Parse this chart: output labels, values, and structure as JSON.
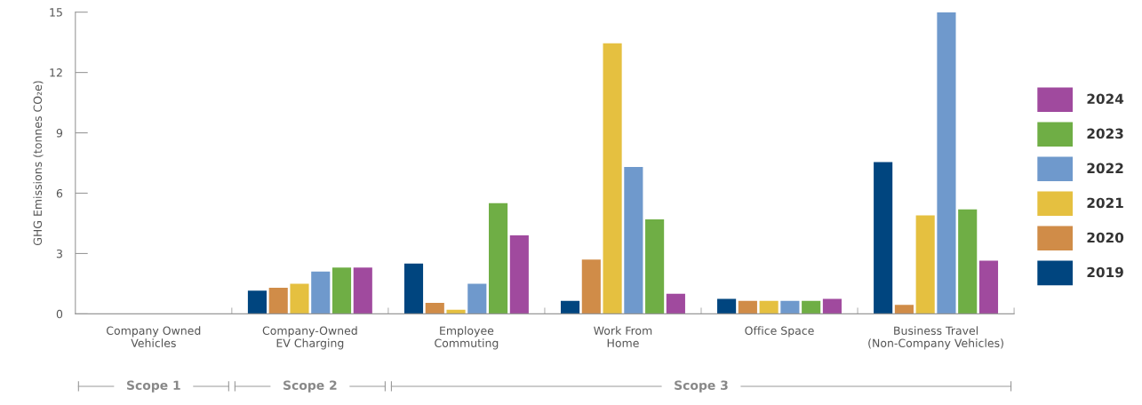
{
  "chart_data": {
    "type": "bar",
    "ylabel": "GHG Emissions (tonnes CO₂e)",
    "categories": [
      "Company Owned\nVehicles",
      "Company-Owned\nEV Charging",
      "Employee\nCommuting",
      "Work From\nHome",
      "Office Space",
      "Business Travel\n(Non-Company Vehicles)"
    ],
    "series": [
      {
        "name": "2019",
        "color": "#00457f",
        "values": [
          0,
          1.15,
          2.5,
          0.65,
          0.75,
          7.55
        ]
      },
      {
        "name": "2020",
        "color": "#d08c48",
        "values": [
          0,
          1.3,
          0.55,
          2.7,
          0.65,
          0.45
        ]
      },
      {
        "name": "2021",
        "color": "#e5c040",
        "values": [
          0,
          1.5,
          0.2,
          13.45,
          0.65,
          4.9
        ]
      },
      {
        "name": "2022",
        "color": "#6f99cc",
        "values": [
          0,
          2.1,
          1.5,
          7.3,
          0.65,
          15
        ]
      },
      {
        "name": "2023",
        "color": "#6fae45",
        "values": [
          0,
          2.3,
          5.5,
          4.7,
          0.65,
          5.2
        ]
      },
      {
        "name": "2024",
        "color": "#a04a9e",
        "values": [
          0,
          2.3,
          3.9,
          1.0,
          0.75,
          2.65
        ]
      }
    ],
    "ylim": [
      0,
      15
    ],
    "yticks": [
      0,
      3,
      6,
      9,
      12,
      15
    ],
    "grid": false,
    "legend": "right",
    "annotations": [
      "Scope 1",
      "Scope 2",
      "Scope 3"
    ]
  }
}
